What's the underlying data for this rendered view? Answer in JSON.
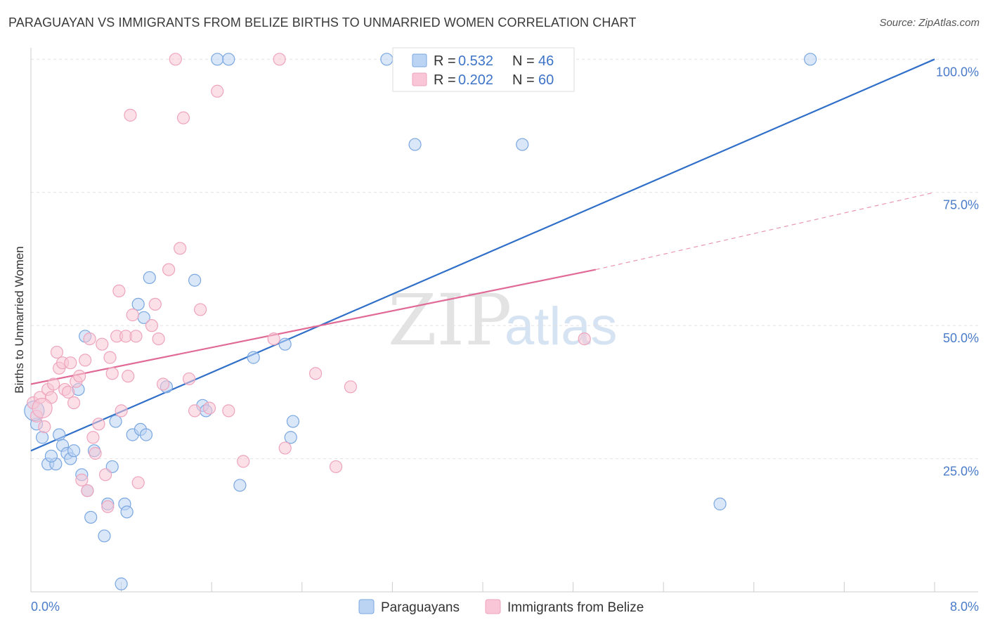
{
  "header": {
    "title": "PARAGUAYAN VS IMMIGRANTS FROM BELIZE BIRTHS TO UNMARRIED WOMEN CORRELATION CHART",
    "source": "Source: ZipAtlas.com"
  },
  "watermark": {
    "zip": "ZIP",
    "atlas": "atlas"
  },
  "stats": {
    "r_label": "R =",
    "n_label": "N =",
    "rows": [
      {
        "r": "0.532",
        "n": "46",
        "color": "#a9c8f0"
      },
      {
        "r": "0.202",
        "n": "60",
        "color": "#f7b9cd"
      }
    ]
  },
  "chart_data": {
    "type": "scatter",
    "ylabel": "Births to Unmarried Women",
    "xlim": [
      0,
      8
    ],
    "ylim": [
      0,
      104
    ],
    "x_tick_labels": [
      "0.0%",
      "8.0%"
    ],
    "y_ticks": [
      {
        "value": 25,
        "label": "25.0%"
      },
      {
        "value": 50,
        "label": "50.0%"
      },
      {
        "value": 75,
        "label": "75.0%"
      },
      {
        "value": 100,
        "label": "100.0%"
      }
    ],
    "grid": true,
    "legend_position": "bottom-center",
    "series": [
      {
        "name": "Paraguayans",
        "color": "#7aa7e0",
        "fill": "#bcd4f4",
        "line_color": "#2f6fc9",
        "trend": {
          "x": [
            0,
            8
          ],
          "y": [
            26.5,
            100
          ]
        },
        "points": [
          [
            0.05,
            31.5
          ],
          [
            0.1,
            29
          ],
          [
            0.15,
            24
          ],
          [
            0.22,
            24
          ],
          [
            0.18,
            25.5
          ],
          [
            0.25,
            29.5
          ],
          [
            0.28,
            27.5
          ],
          [
            0.32,
            26
          ],
          [
            0.35,
            25
          ],
          [
            0.38,
            26.5
          ],
          [
            0.42,
            38
          ],
          [
            0.45,
            22
          ],
          [
            0.48,
            48
          ],
          [
            0.5,
            19
          ],
          [
            0.53,
            14
          ],
          [
            0.56,
            26.5
          ],
          [
            0.65,
            10.5
          ],
          [
            0.68,
            16.5
          ],
          [
            0.72,
            23.5
          ],
          [
            0.75,
            32
          ],
          [
            0.8,
            1.5
          ],
          [
            0.83,
            16.5
          ],
          [
            0.85,
            15
          ],
          [
            0.9,
            29.5
          ],
          [
            0.95,
            54
          ],
          [
            0.97,
            30.5
          ],
          [
            1.0,
            51.5
          ],
          [
            1.02,
            29.5
          ],
          [
            1.05,
            59
          ],
          [
            1.2,
            38.5
          ],
          [
            1.45,
            58.5
          ],
          [
            1.52,
            35
          ],
          [
            1.55,
            34
          ],
          [
            1.65,
            100
          ],
          [
            1.75,
            100
          ],
          [
            1.85,
            20
          ],
          [
            1.97,
            44
          ],
          [
            2.25,
            46.5
          ],
          [
            2.3,
            29
          ],
          [
            2.32,
            32
          ],
          [
            3.15,
            100
          ],
          [
            3.4,
            84
          ],
          [
            4.35,
            84
          ],
          [
            6.1,
            16.5
          ],
          [
            6.9,
            100
          ],
          [
            0.03,
            34
          ]
        ]
      },
      {
        "name": "Immigrants from Belize",
        "color": "#eea4bd",
        "fill": "#f8c6d6",
        "line_color": "#e06a95",
        "trend": {
          "x": [
            0,
            5.0
          ],
          "y": [
            39,
            60.5
          ]
        },
        "trend_ext": {
          "x": [
            5.0,
            8
          ],
          "y": [
            60.5,
            75
          ]
        },
        "points": [
          [
            0.02,
            35.5
          ],
          [
            0.05,
            33
          ],
          [
            0.08,
            36.5
          ],
          [
            0.12,
            31
          ],
          [
            0.15,
            38
          ],
          [
            0.18,
            36.5
          ],
          [
            0.2,
            39
          ],
          [
            0.23,
            45
          ],
          [
            0.25,
            42
          ],
          [
            0.28,
            43
          ],
          [
            0.3,
            38
          ],
          [
            0.33,
            37.5
          ],
          [
            0.35,
            43
          ],
          [
            0.38,
            35.5
          ],
          [
            0.4,
            39.5
          ],
          [
            0.43,
            40.5
          ],
          [
            0.45,
            21
          ],
          [
            0.48,
            43.5
          ],
          [
            0.5,
            19
          ],
          [
            0.52,
            47.5
          ],
          [
            0.55,
            29
          ],
          [
            0.57,
            26
          ],
          [
            0.6,
            31.5
          ],
          [
            0.63,
            46.5
          ],
          [
            0.66,
            22
          ],
          [
            0.68,
            16
          ],
          [
            0.7,
            44
          ],
          [
            0.72,
            41
          ],
          [
            0.76,
            48
          ],
          [
            0.78,
            56.5
          ],
          [
            0.8,
            34
          ],
          [
            0.84,
            48
          ],
          [
            0.86,
            40.5
          ],
          [
            0.88,
            89.5
          ],
          [
            0.9,
            52
          ],
          [
            0.93,
            48
          ],
          [
            0.95,
            20.5
          ],
          [
            1.07,
            50
          ],
          [
            1.1,
            54
          ],
          [
            1.13,
            47.5
          ],
          [
            1.17,
            39
          ],
          [
            1.22,
            60.5
          ],
          [
            1.28,
            100
          ],
          [
            1.32,
            64.5
          ],
          [
            1.35,
            89
          ],
          [
            1.4,
            40
          ],
          [
            1.45,
            34
          ],
          [
            1.5,
            53
          ],
          [
            1.58,
            34.5
          ],
          [
            1.65,
            94
          ],
          [
            1.75,
            34
          ],
          [
            1.88,
            24.5
          ],
          [
            2.15,
            47.5
          ],
          [
            2.2,
            100
          ],
          [
            2.25,
            27
          ],
          [
            2.52,
            41
          ],
          [
            2.7,
            23.5
          ],
          [
            2.83,
            38.5
          ],
          [
            4.9,
            47.5
          ],
          [
            0.1,
            34.5
          ]
        ]
      }
    ]
  }
}
